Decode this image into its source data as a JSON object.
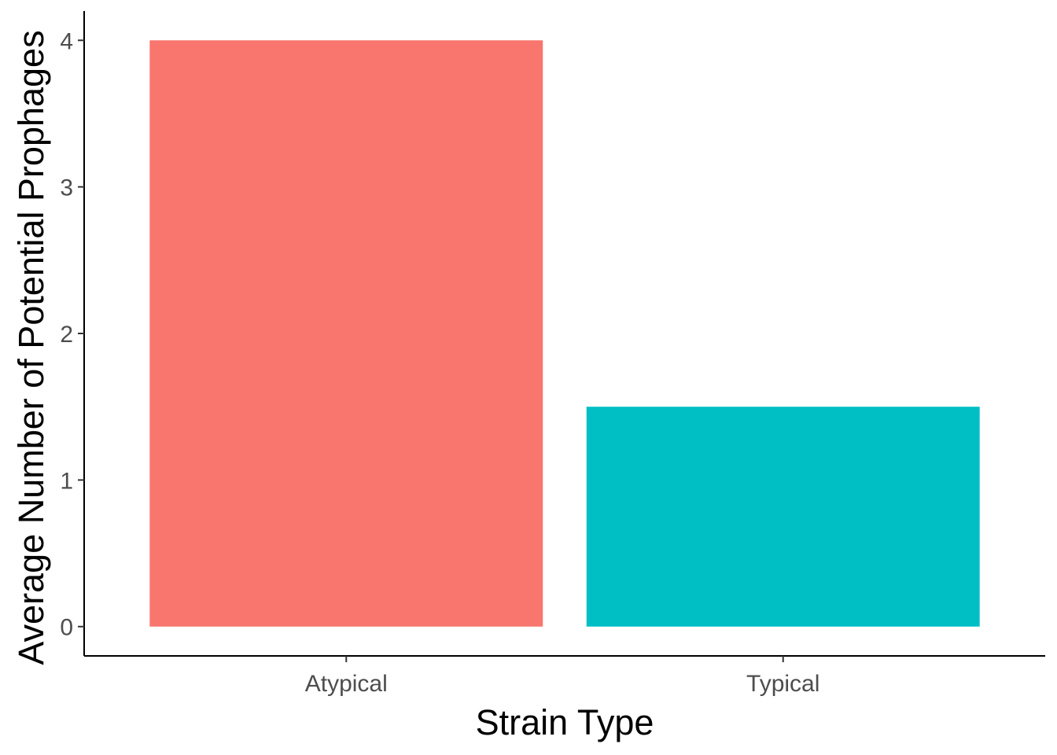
{
  "chart_data": {
    "type": "bar",
    "categories": [
      "Atypical",
      "Typical"
    ],
    "values": [
      4.0,
      1.5
    ],
    "colors": [
      "#F8766D",
      "#00BFC4"
    ],
    "xlabel": "Strain Type",
    "ylabel": "Average Number of Potential Prophages",
    "ylim": [
      -0.2,
      4.2
    ],
    "yticks": [
      0,
      1,
      2,
      3,
      4
    ],
    "grid": false,
    "legend": "none"
  }
}
